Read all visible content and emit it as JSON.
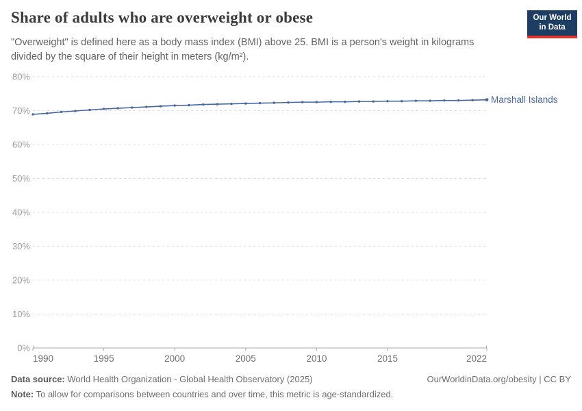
{
  "header": {
    "title": "Share of adults who are overweight or obese",
    "subtitle": "\"Overweight\" is defined here as a body mass index (BMI) above 25. BMI is a person's weight in kilograms divided by the square of their height in meters (kg/m²).",
    "logo": {
      "line1": "Our World",
      "line2": "in Data"
    }
  },
  "chart_data": {
    "type": "line",
    "title": "Share of adults who are overweight or obese",
    "xlabel": "",
    "ylabel": "",
    "xlim": [
      1990,
      2022
    ],
    "ylim": [
      0,
      80
    ],
    "x_ticks": [
      1990,
      1995,
      2000,
      2005,
      2010,
      2015,
      2022
    ],
    "y_ticks": [
      0,
      10,
      20,
      30,
      40,
      50,
      60,
      70,
      80
    ],
    "y_tick_suffix": "%",
    "grid": "horizontal-dashed",
    "legend": "line-end-label",
    "x": [
      1990,
      1991,
      1992,
      1993,
      1994,
      1995,
      1996,
      1997,
      1998,
      1999,
      2000,
      2001,
      2002,
      2003,
      2004,
      2005,
      2006,
      2007,
      2008,
      2009,
      2010,
      2011,
      2012,
      2013,
      2014,
      2015,
      2016,
      2017,
      2018,
      2019,
      2020,
      2021,
      2022
    ],
    "series": [
      {
        "name": "Marshall Islands",
        "color": "#4767a2",
        "values": [
          68.9,
          69.2,
          69.6,
          69.9,
          70.2,
          70.5,
          70.7,
          70.9,
          71.1,
          71.3,
          71.5,
          71.6,
          71.8,
          71.9,
          72.0,
          72.1,
          72.2,
          72.3,
          72.4,
          72.5,
          72.5,
          72.6,
          72.6,
          72.7,
          72.7,
          72.8,
          72.8,
          72.9,
          72.9,
          73.0,
          73.0,
          73.1,
          73.2
        ]
      }
    ]
  },
  "colors": {
    "accent_line": "#4767a2",
    "gridline": "#dcdcdc",
    "axis": "#a8a8a8",
    "y_tick_label": "#9a9a9a",
    "x_tick_label": "#6e6e6e",
    "logo_bg": "#1d3d63",
    "logo_bar": "#dc352d"
  },
  "footer": {
    "datasource_label": "Data source:",
    "datasource_text": " World Health Organization - Global Health Observatory (2025)",
    "note_label": "Note:",
    "note_text": " To allow for comparisons between countries and over time, this metric is age-standardized.",
    "link": "OurWorldinData.org/obesity | CC BY"
  }
}
